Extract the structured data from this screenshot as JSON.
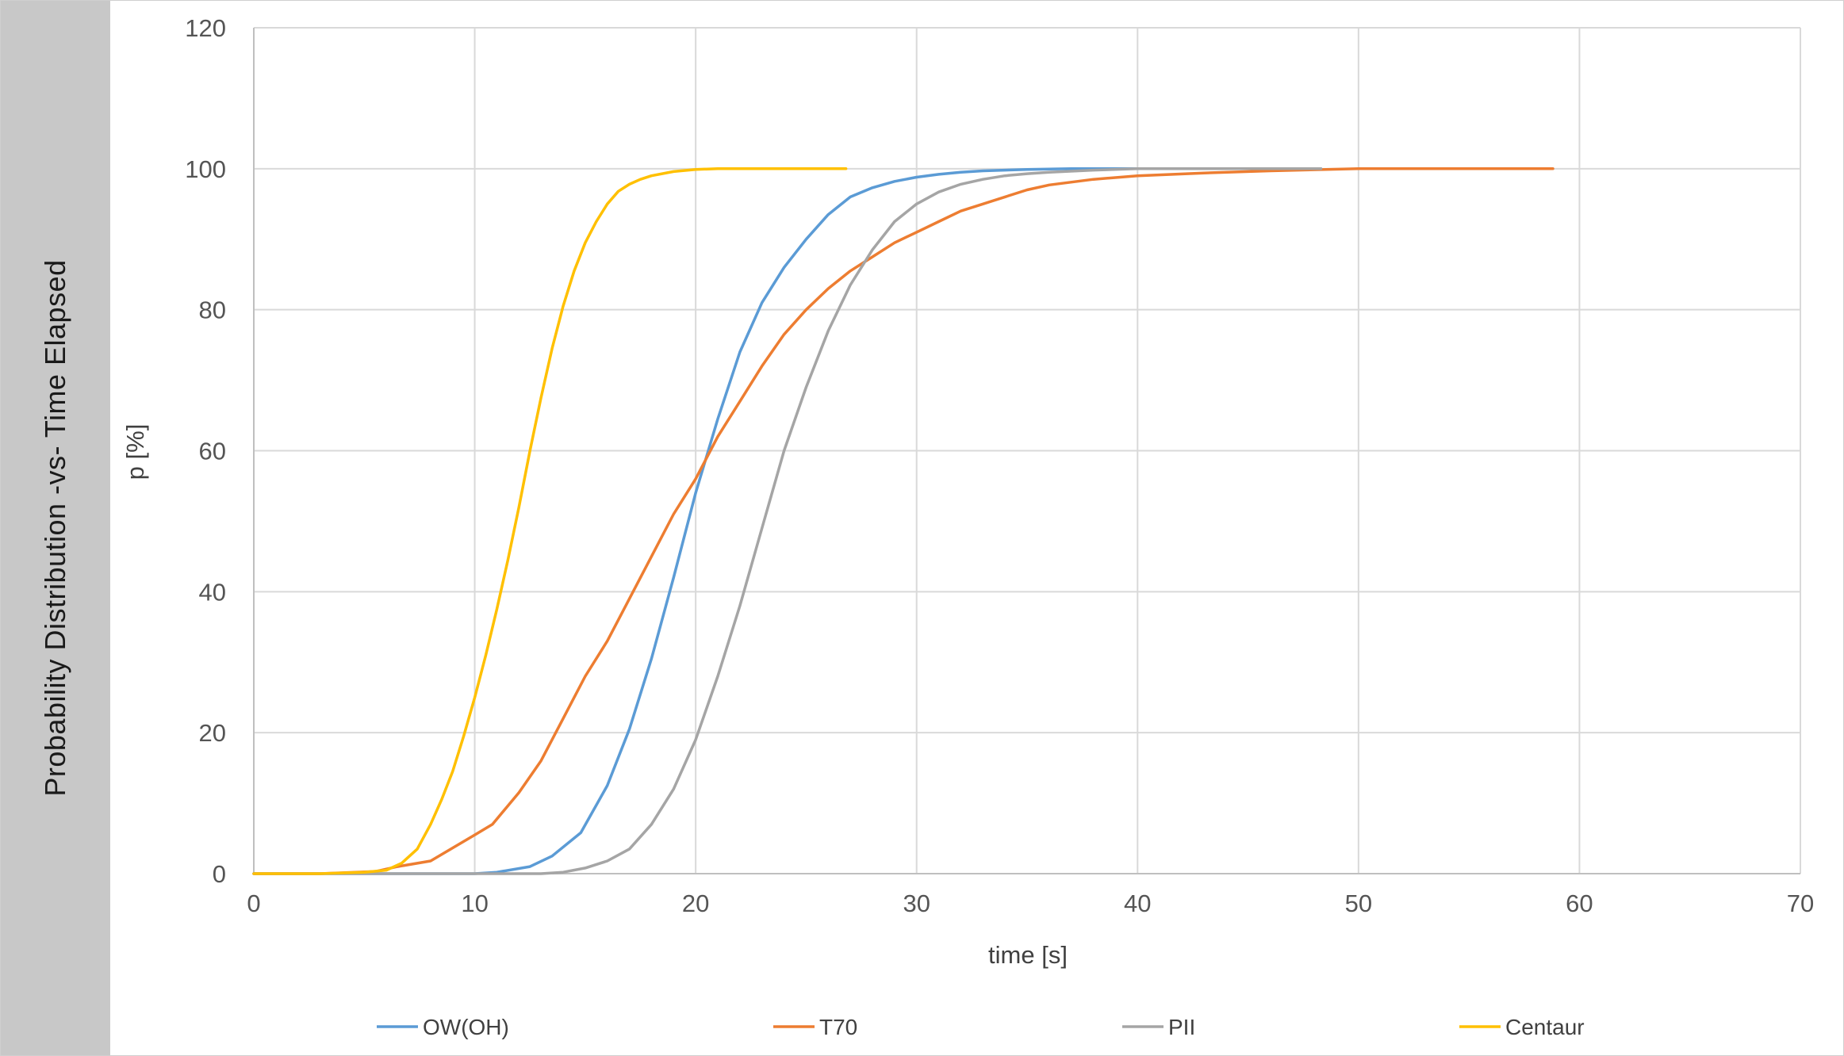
{
  "side_title": "Probability Distribution -vs- Time Elapsed",
  "colors": {
    "OW(OH)": "#5b9bd5",
    "T70": "#ed7d31",
    "PII": "#a5a5a5",
    "Centaur": "#ffc000",
    "grid": "#d9d9d9",
    "side_band": "#c8c8c8"
  },
  "chart_data": {
    "type": "line",
    "xlabel": "time [s]",
    "ylabel": "p [%]",
    "xlim": [
      0,
      70
    ],
    "ylim": [
      0,
      120
    ],
    "x_ticks": [
      0,
      10,
      20,
      30,
      40,
      50,
      60,
      70
    ],
    "y_ticks": [
      0,
      20,
      40,
      60,
      80,
      100,
      120
    ],
    "grid": true,
    "legend_position": "bottom",
    "series": [
      {
        "name": "OW(OH)",
        "color": "#5b9bd5",
        "x": [
          0,
          5,
          8,
          10,
          11,
          12.5,
          13.5,
          14.8,
          16,
          17,
          18,
          19,
          20,
          21,
          22,
          23,
          24,
          25,
          26,
          27,
          28,
          29,
          30,
          31,
          32,
          33,
          34,
          35,
          37,
          40,
          45,
          48.3
        ],
        "y": [
          0,
          0,
          0,
          0,
          0.2,
          1,
          2.5,
          5.8,
          12.5,
          20.5,
          30.5,
          42,
          54,
          64.5,
          74,
          81,
          86,
          90,
          93.5,
          96,
          97.3,
          98.2,
          98.8,
          99.2,
          99.5,
          99.7,
          99.8,
          99.9,
          100,
          100,
          100,
          100
        ]
      },
      {
        "name": "T70",
        "color": "#ed7d31",
        "x": [
          0,
          3,
          5.5,
          6.5,
          8,
          10,
          10.8,
          12,
          13,
          14,
          15,
          16,
          17,
          18,
          19,
          20,
          21,
          22,
          23,
          24,
          25,
          26,
          27,
          28,
          29,
          30,
          31,
          32,
          33,
          34,
          35,
          36,
          38,
          40,
          43,
          46,
          50,
          55,
          58.8
        ],
        "y": [
          0,
          0,
          0.3,
          1,
          1.8,
          5.5,
          7,
          11.5,
          16,
          22,
          28,
          33,
          39,
          45,
          51,
          56,
          62,
          67,
          72,
          76.5,
          80,
          83,
          85.5,
          87.5,
          89.5,
          91,
          92.5,
          94,
          95,
          96,
          97,
          97.7,
          98.5,
          99,
          99.4,
          99.7,
          100,
          100,
          100
        ]
      },
      {
        "name": "PII",
        "color": "#a5a5a5",
        "x": [
          0,
          10,
          13,
          14,
          15,
          16,
          17,
          18,
          19,
          20,
          21,
          22,
          23,
          24,
          25,
          26,
          27,
          28,
          29,
          30,
          31,
          32,
          33,
          34,
          35,
          36,
          38,
          40,
          43,
          48.3
        ],
        "y": [
          0,
          0,
          0,
          0.2,
          0.8,
          1.8,
          3.5,
          7,
          12,
          19,
          28,
          38,
          49,
          60,
          69,
          77,
          83.5,
          88.5,
          92.5,
          95,
          96.7,
          97.8,
          98.5,
          99,
          99.3,
          99.5,
          99.8,
          100,
          100,
          100
        ]
      },
      {
        "name": "Centaur",
        "color": "#ffc000",
        "x": [
          0,
          3,
          5,
          6,
          6.7,
          7.4,
          8,
          8.5,
          9,
          9.5,
          10,
          10.5,
          11,
          11.5,
          12,
          12.5,
          13,
          13.5,
          14,
          14.5,
          15,
          15.5,
          16,
          16.5,
          17,
          17.5,
          18,
          19,
          20,
          21,
          22,
          24,
          26.8
        ],
        "y": [
          0,
          0,
          0.2,
          0.5,
          1.5,
          3.5,
          7,
          10.5,
          14.5,
          19.5,
          25,
          31,
          37.5,
          44.5,
          52,
          60,
          67.5,
          74.5,
          80.5,
          85.5,
          89.5,
          92.5,
          95,
          96.8,
          97.8,
          98.5,
          99,
          99.6,
          99.9,
          100,
          100,
          100,
          100
        ]
      }
    ]
  }
}
